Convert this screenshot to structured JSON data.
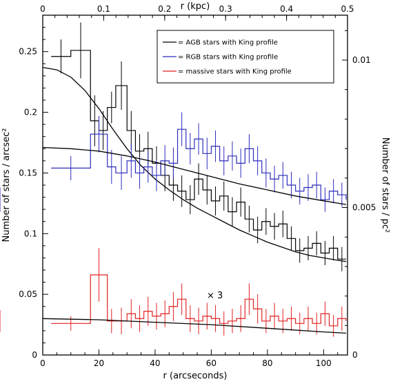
{
  "chart_data": {
    "type": "line",
    "xlabel": "r (arcseconds)",
    "ylabel": "Number of stars / arcsec²",
    "top_xlabel": "r (kpc)",
    "right_ylabel": "Number of stars / pc²",
    "xlim": [
      0,
      108.5
    ],
    "ylim": [
      0,
      0.28
    ],
    "x_ticks": [
      0,
      20,
      40,
      60,
      80,
      100
    ],
    "y_ticks": [
      0,
      0.05,
      0.1,
      0.15,
      0.2,
      0.25
    ],
    "top_ticks": [
      0,
      0.1,
      0.2,
      0.3,
      0.4,
      0.5
    ],
    "right_ticks": [
      0,
      0.005,
      0.01
    ],
    "secondary_scales": {
      "kpc_per_arcsec": 0.004608,
      "pc2_per_arcsec2": 24.3
    },
    "annotation": "× 3",
    "legend_position": "top-right",
    "grid": false,
    "series": [
      {
        "name": "= AGB stars with King profile",
        "color": "#000000",
        "edges": [
          3,
          10,
          17,
          20,
          23,
          26,
          30,
          33,
          36,
          39,
          42,
          45,
          48,
          51,
          54,
          57,
          60,
          63,
          66,
          69,
          72,
          75,
          78,
          81,
          84,
          87,
          90,
          93,
          96,
          99,
          102,
          105,
          108
        ],
        "values": [
          0.246,
          0.251,
          0.193,
          0.185,
          0.204,
          0.222,
          0.185,
          0.168,
          0.17,
          0.158,
          0.148,
          0.14,
          0.135,
          0.128,
          0.145,
          0.136,
          0.127,
          0.131,
          0.118,
          0.126,
          0.112,
          0.103,
          0.11,
          0.106,
          0.108,
          0.096,
          0.086,
          0.088,
          0.092,
          0.084,
          0.088,
          0.079
        ],
        "errors": [
          0.014,
          0.023,
          0.021,
          0.016,
          0.013,
          0.02,
          0.016,
          0.014,
          0.014,
          0.014,
          0.013,
          0.013,
          0.013,
          0.012,
          0.013,
          0.012,
          0.012,
          0.012,
          0.012,
          0.012,
          0.011,
          0.011,
          0.011,
          0.011,
          0.011,
          0.01,
          0.01,
          0.01,
          0.01,
          0.01,
          0.01,
          0.01
        ],
        "king_curve": [
          [
            0,
            0.237
          ],
          [
            5,
            0.235
          ],
          [
            10,
            0.229
          ],
          [
            15,
            0.218
          ],
          [
            20,
            0.203
          ],
          [
            25,
            0.186
          ],
          [
            30,
            0.17
          ],
          [
            35,
            0.156
          ],
          [
            40,
            0.145
          ],
          [
            45,
            0.136
          ],
          [
            50,
            0.128
          ],
          [
            55,
            0.121
          ],
          [
            60,
            0.115
          ],
          [
            65,
            0.109
          ],
          [
            70,
            0.103
          ],
          [
            75,
            0.098
          ],
          [
            80,
            0.093
          ],
          [
            85,
            0.089
          ],
          [
            90,
            0.085
          ],
          [
            95,
            0.082
          ],
          [
            100,
            0.08
          ],
          [
            105,
            0.078
          ],
          [
            108,
            0.077
          ]
        ]
      },
      {
        "name": "= RGB stars with King profile",
        "color": "#2b2bbd",
        "edges": [
          3,
          17,
          23,
          26,
          30,
          33,
          36,
          39,
          42,
          45,
          48,
          51,
          54,
          57,
          60,
          63,
          66,
          69,
          72,
          75,
          78,
          81,
          84,
          87,
          90,
          93,
          96,
          99,
          102,
          105,
          108
        ],
        "values": [
          0.154,
          0.182,
          0.155,
          0.15,
          0.16,
          0.15,
          0.155,
          0.148,
          0.16,
          0.158,
          0.186,
          0.17,
          0.178,
          0.166,
          0.172,
          0.16,
          0.164,
          0.158,
          0.17,
          0.16,
          0.15,
          0.145,
          0.148,
          0.14,
          0.135,
          0.138,
          0.14,
          0.128,
          0.135,
          0.132,
          0.128
        ],
        "errors": [
          0.01,
          0.015,
          0.014,
          0.014,
          0.014,
          0.013,
          0.013,
          0.013,
          0.013,
          0.013,
          0.014,
          0.013,
          0.013,
          0.013,
          0.013,
          0.012,
          0.012,
          0.012,
          0.012,
          0.012,
          0.012,
          0.011,
          0.011,
          0.011,
          0.011,
          0.011,
          0.011,
          0.01,
          0.01,
          0.01,
          0.01
        ],
        "king_curve": [
          [
            0,
            0.171
          ],
          [
            10,
            0.17
          ],
          [
            20,
            0.168
          ],
          [
            30,
            0.164
          ],
          [
            40,
            0.159
          ],
          [
            50,
            0.153
          ],
          [
            60,
            0.147
          ],
          [
            70,
            0.141
          ],
          [
            80,
            0.136
          ],
          [
            90,
            0.131
          ],
          [
            100,
            0.127
          ],
          [
            108,
            0.124
          ]
        ]
      },
      {
        "name": "= massive stars with King profile",
        "color": "#e02020",
        "edges": [
          3,
          17,
          23,
          26,
          30,
          33,
          36,
          39,
          42,
          45,
          48,
          51,
          54,
          57,
          60,
          63,
          66,
          69,
          72,
          75,
          78,
          81,
          84,
          87,
          90,
          93,
          96,
          99,
          102,
          105,
          108
        ],
        "values": [
          0.026,
          0.066,
          0.028,
          0.028,
          0.034,
          0.03,
          0.036,
          0.032,
          0.034,
          0.04,
          0.046,
          0.03,
          0.028,
          0.032,
          0.03,
          0.026,
          0.028,
          0.03,
          0.046,
          0.038,
          0.028,
          0.032,
          0.028,
          0.03,
          0.026,
          0.03,
          0.026,
          0.034,
          0.024,
          0.03,
          0.028
        ],
        "errors": [
          0.006,
          0.022,
          0.01,
          0.011,
          0.012,
          0.011,
          0.012,
          0.011,
          0.011,
          0.012,
          0.013,
          0.011,
          0.011,
          0.011,
          0.011,
          0.01,
          0.01,
          0.011,
          0.013,
          0.012,
          0.01,
          0.011,
          0.01,
          0.01,
          0.009,
          0.01,
          0.009,
          0.01,
          0.009,
          0.01,
          0.009
        ],
        "king_curve": [
          [
            0,
            0.03
          ],
          [
            20,
            0.029
          ],
          [
            40,
            0.027
          ],
          [
            60,
            0.025
          ],
          [
            80,
            0.022
          ],
          [
            100,
            0.019
          ],
          [
            108,
            0.018
          ]
        ]
      }
    ]
  }
}
